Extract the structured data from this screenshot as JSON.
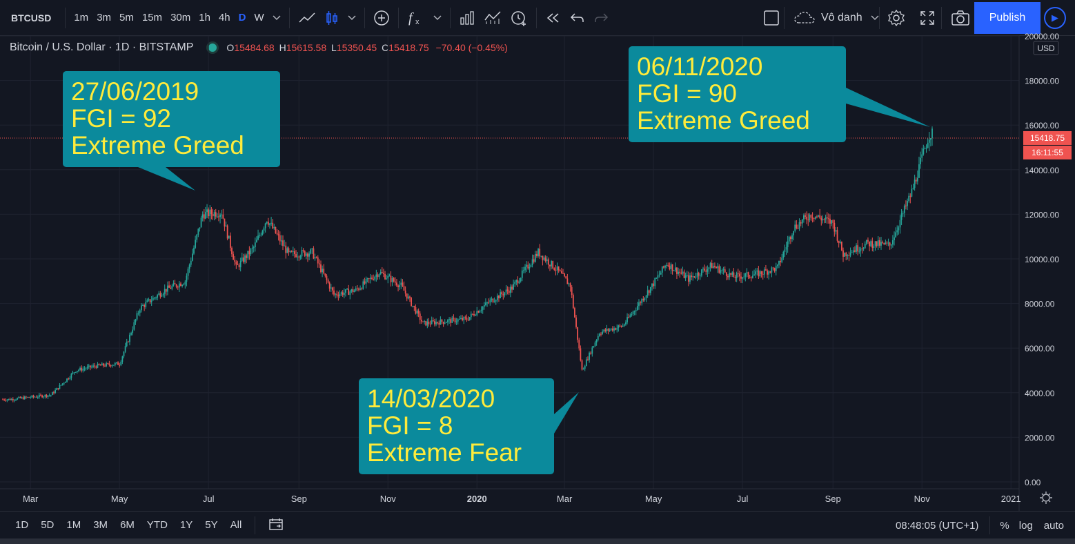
{
  "toolbar": {
    "symbol": "BTCUSD",
    "intervals": [
      "1m",
      "3m",
      "5m",
      "15m",
      "30m",
      "1h",
      "4h",
      "D",
      "W"
    ],
    "active_interval": "D",
    "layout_name": "Vô danh",
    "publish_label": "Publish"
  },
  "legend": {
    "title": "Bitcoin / U.S. Dollar · 1D · BITSTAMP",
    "o_label": "O",
    "o_value": "15484.68",
    "h_label": "H",
    "h_value": "15615.58",
    "l_label": "L",
    "l_value": "15350.45",
    "c_label": "C",
    "c_value": "15418.75",
    "change": "−70.40 (−0.45%)"
  },
  "price_axis": {
    "currency": "USD",
    "last_price": "15418.75",
    "countdown": "16:11:55",
    "tick_labels": [
      "0.00",
      "2000.00",
      "4000.00",
      "6000.00",
      "8000.00",
      "10000.00",
      "12000.00",
      "14000.00",
      "16000.00",
      "18000.00",
      "20000.00"
    ]
  },
  "time_axis": {
    "labels": [
      "Mar",
      "May",
      "Jul",
      "Sep",
      "Nov",
      "2020",
      "Mar",
      "May",
      "Jul",
      "Sep",
      "Nov",
      "2021"
    ]
  },
  "bottom": {
    "ranges": [
      "1D",
      "5D",
      "1M",
      "3M",
      "6M",
      "YTD",
      "1Y",
      "5Y",
      "All"
    ],
    "clock": "08:48:05 (UTC+1)",
    "percent": "%",
    "log": "log",
    "auto": "auto"
  },
  "annotations": [
    {
      "date": "27/06/2019",
      "fgi": "FGI = 92",
      "label": "Extreme Greed"
    },
    {
      "date": "14/03/2020",
      "fgi": "FGI = 8",
      "label": "Extreme Fear"
    },
    {
      "date": "06/11/2020",
      "fgi": "FGI = 90",
      "label": "Extreme Greed"
    }
  ],
  "colors": {
    "up": "#26a69a",
    "down": "#ef5350",
    "callout": "#0b8a9c",
    "callout_text": "#ffeb3b",
    "publish": "#2962ff"
  },
  "chart_data": {
    "type": "line",
    "title": "Bitcoin / U.S. Dollar · 1D · BITSTAMP",
    "xlabel": "",
    "ylabel": "",
    "ylim": [
      0,
      20000
    ],
    "x": [
      "2019-02-15",
      "2019-03-01",
      "2019-03-15",
      "2019-04-01",
      "2019-04-15",
      "2019-05-01",
      "2019-05-15",
      "2019-06-01",
      "2019-06-15",
      "2019-06-27",
      "2019-07-10",
      "2019-07-20",
      "2019-08-01",
      "2019-08-10",
      "2019-08-25",
      "2019-09-10",
      "2019-09-25",
      "2019-10-10",
      "2019-10-26",
      "2019-11-10",
      "2019-11-25",
      "2019-12-10",
      "2019-12-25",
      "2020-01-10",
      "2020-01-25",
      "2020-02-12",
      "2020-02-25",
      "2020-03-05",
      "2020-03-13",
      "2020-03-25",
      "2020-04-10",
      "2020-04-30",
      "2020-05-10",
      "2020-05-25",
      "2020-06-10",
      "2020-06-25",
      "2020-07-10",
      "2020-07-25",
      "2020-08-05",
      "2020-08-17",
      "2020-09-01",
      "2020-09-08",
      "2020-09-25",
      "2020-10-10",
      "2020-10-25",
      "2020-11-06"
    ],
    "series": [
      {
        "values": [
          3700,
          3800,
          3900,
          5000,
          5200,
          5300,
          7800,
          8600,
          9000,
          12000,
          12100,
          9600,
          10500,
          11800,
          10200,
          10300,
          8400,
          8600,
          9400,
          8800,
          7100,
          7200,
          7300,
          8100,
          8700,
          10300,
          9500,
          8800,
          5000,
          6700,
          7000,
          8800,
          9800,
          9100,
          9700,
          9200,
          9300,
          9600,
          11400,
          12000,
          11600,
          10200,
          10700,
          10600,
          13000,
          15600
        ]
      }
    ]
  }
}
